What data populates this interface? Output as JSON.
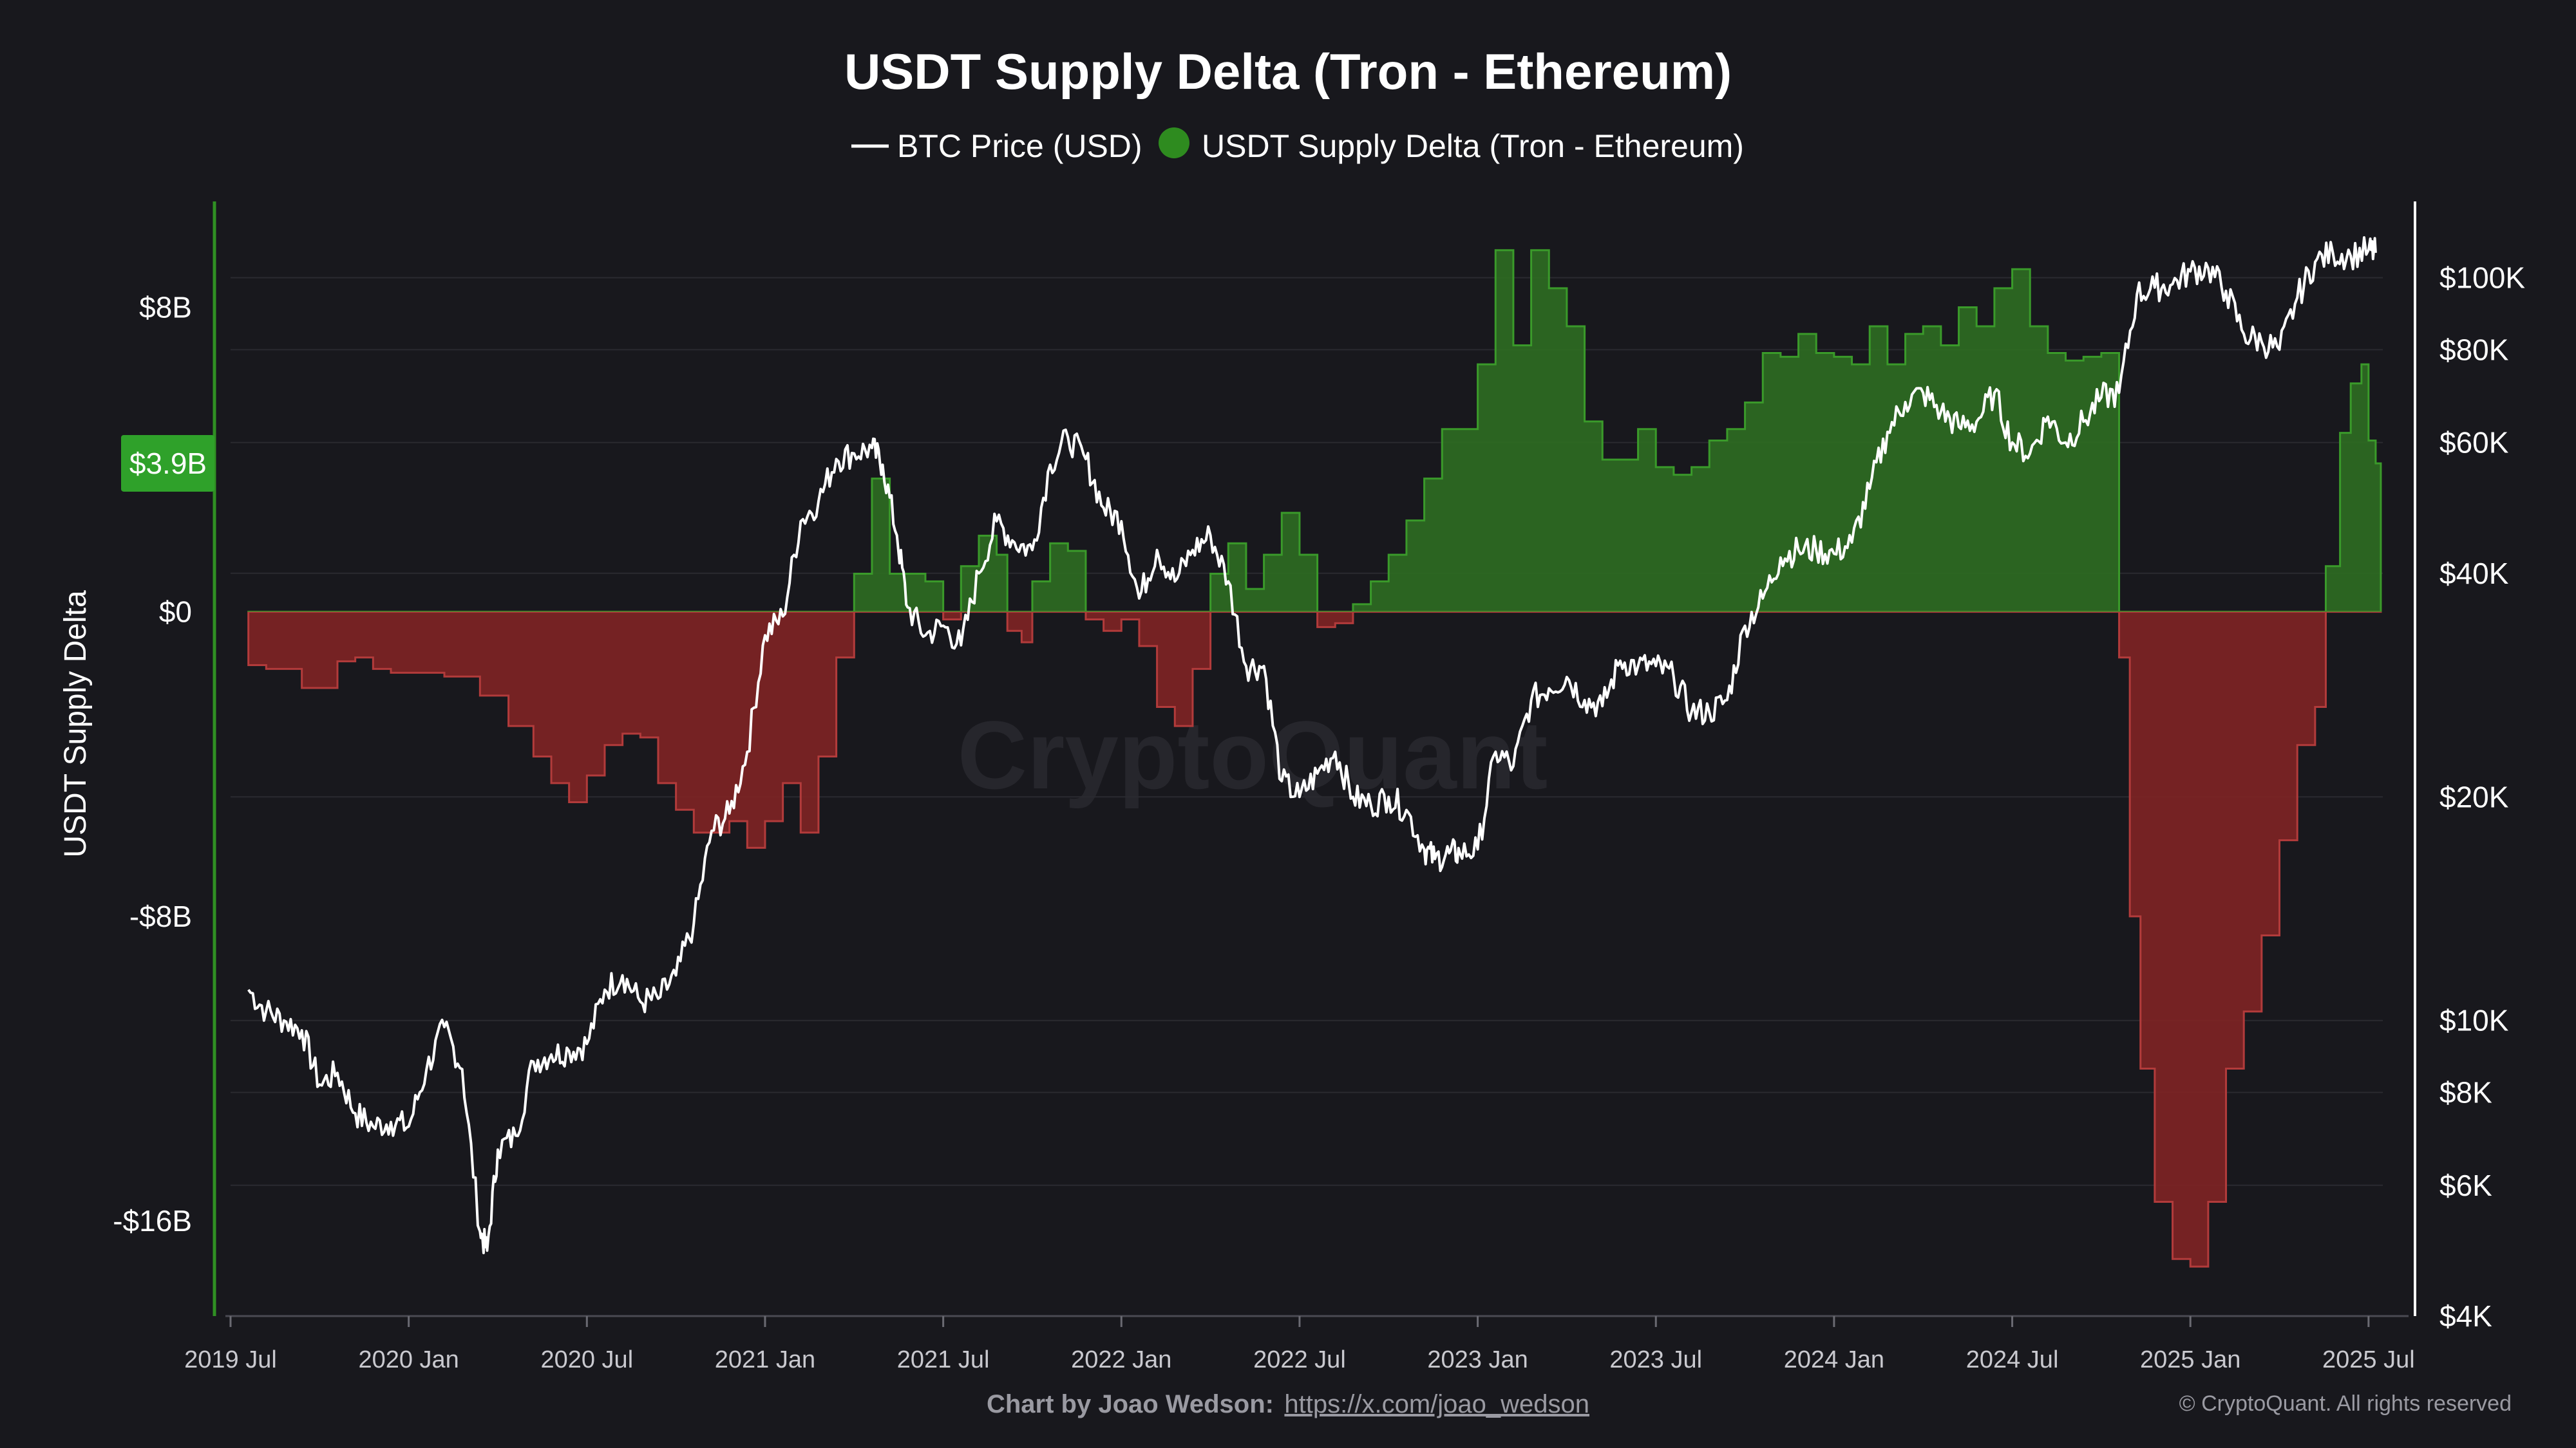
{
  "chart_data": {
    "type": "area",
    "title": "USDT Supply Delta (Tron - Ethereum)",
    "legend": [
      {
        "name": "BTC Price (USD)",
        "color": "#ffffff",
        "marker": "line"
      },
      {
        "name": "USDT Supply Delta (Tron - Ethereum)",
        "color": "#2e8b1f",
        "marker": "dot"
      }
    ],
    "legend_position": "top-center",
    "ylabel_left": "USDT Supply Delta",
    "left_ticks": [
      {
        "v": 8,
        "label": "$8B"
      },
      {
        "v": 0,
        "label": "$0"
      },
      {
        "v": -8,
        "label": "-$8B"
      },
      {
        "v": -16,
        "label": "-$16B"
      }
    ],
    "left_range": [
      -18.5,
      11
    ],
    "current_value": {
      "v": 3.9,
      "label": "$3.9B"
    },
    "right_ticks": [
      {
        "v": 100000,
        "label": "$100K"
      },
      {
        "v": 80000,
        "label": "$80K"
      },
      {
        "v": 60000,
        "label": "$60K"
      },
      {
        "v": 40000,
        "label": "$40K"
      },
      {
        "v": 20000,
        "label": "$20K"
      },
      {
        "v": 10000,
        "label": "$10K"
      },
      {
        "v": 8000,
        "label": "$8K"
      },
      {
        "v": 6000,
        "label": "$6K"
      },
      {
        "v": 4000,
        "label": "$4K"
      }
    ],
    "right_scale": "log",
    "right_range": [
      4000,
      130000
    ],
    "x_ticks": [
      {
        "t": 2019.5,
        "label": "2019 Jul"
      },
      {
        "t": 2020.0,
        "label": "2020 Jan"
      },
      {
        "t": 2020.5,
        "label": "2020 Jul"
      },
      {
        "t": 2021.0,
        "label": "2021 Jan"
      },
      {
        "t": 2021.5,
        "label": "2021 Jul"
      },
      {
        "t": 2022.0,
        "label": "2022 Jan"
      },
      {
        "t": 2022.5,
        "label": "2022 Jul"
      },
      {
        "t": 2023.0,
        "label": "2023 Jan"
      },
      {
        "t": 2023.5,
        "label": "2023 Jul"
      },
      {
        "t": 2024.0,
        "label": "2024 Jan"
      },
      {
        "t": 2024.5,
        "label": "2024 Jul"
      },
      {
        "t": 2025.0,
        "label": "2025 Jan"
      },
      {
        "t": 2025.5,
        "label": "2025 Jul"
      }
    ],
    "x_range": [
      2019.5,
      2025.54
    ],
    "supply_delta_billion": {
      "t": [
        2019.55,
        2019.6,
        2019.7,
        2019.8,
        2019.85,
        2019.9,
        2019.95,
        2020.0,
        2020.1,
        2020.2,
        2020.28,
        2020.35,
        2020.4,
        2020.45,
        2020.5,
        2020.55,
        2020.6,
        2020.65,
        2020.7,
        2020.75,
        2020.8,
        2020.9,
        2020.95,
        2021.0,
        2021.05,
        2021.1,
        2021.15,
        2021.2,
        2021.25,
        2021.3,
        2021.35,
        2021.4,
        2021.45,
        2021.5,
        2021.55,
        2021.6,
        2021.65,
        2021.68,
        2021.72,
        2021.75,
        2021.8,
        2021.85,
        2021.9,
        2021.95,
        2022.0,
        2022.05,
        2022.1,
        2022.15,
        2022.2,
        2022.25,
        2022.3,
        2022.35,
        2022.4,
        2022.45,
        2022.5,
        2022.55,
        2022.6,
        2022.65,
        2022.7,
        2022.75,
        2022.8,
        2022.85,
        2022.9,
        2022.95,
        2023.0,
        2023.05,
        2023.1,
        2023.15,
        2023.2,
        2023.25,
        2023.3,
        2023.35,
        2023.4,
        2023.45,
        2023.5,
        2023.55,
        2023.6,
        2023.65,
        2023.7,
        2023.75,
        2023.8,
        2023.85,
        2023.9,
        2023.95,
        2024.0,
        2024.05,
        2024.1,
        2024.15,
        2024.2,
        2024.25,
        2024.3,
        2024.35,
        2024.4,
        2024.45,
        2024.5,
        2024.55,
        2024.6,
        2024.65,
        2024.7,
        2024.75,
        2024.8,
        2024.83,
        2024.86,
        2024.9,
        2024.95,
        2025.0,
        2025.05,
        2025.1,
        2025.15,
        2025.2,
        2025.25,
        2025.3,
        2025.35,
        2025.38,
        2025.42,
        2025.45,
        2025.48,
        2025.5,
        2025.52
      ],
      "v": [
        -1.4,
        -1.5,
        -2.0,
        -1.3,
        -1.2,
        -1.5,
        -1.6,
        -1.6,
        -1.7,
        -2.2,
        -3.0,
        -3.8,
        -4.5,
        -5.0,
        -4.3,
        -3.5,
        -3.2,
        -3.3,
        -4.5,
        -5.2,
        -5.8,
        -5.5,
        -6.2,
        -5.5,
        -4.5,
        -5.8,
        -3.8,
        -1.2,
        1.0,
        3.5,
        1.0,
        1.0,
        0.8,
        -0.2,
        1.2,
        2.0,
        1.5,
        -0.5,
        -0.8,
        0.8,
        1.8,
        1.6,
        -0.2,
        -0.5,
        -0.2,
        -0.9,
        -2.5,
        -3.0,
        -1.5,
        1.0,
        1.8,
        0.6,
        1.5,
        2.6,
        1.5,
        -0.4,
        -0.3,
        0.2,
        0.8,
        1.5,
        2.4,
        3.5,
        4.8,
        4.8,
        6.5,
        9.5,
        7.0,
        9.5,
        8.5,
        7.5,
        5.0,
        4.0,
        4.0,
        4.8,
        3.8,
        3.6,
        3.8,
        4.5,
        4.8,
        5.5,
        6.8,
        6.7,
        7.3,
        6.8,
        6.7,
        6.5,
        7.5,
        6.5,
        7.3,
        7.5,
        7.0,
        8.0,
        7.5,
        8.5,
        9.0,
        7.5,
        6.8,
        6.6,
        6.7,
        6.8,
        -1.2,
        -8.0,
        -12.0,
        -15.5,
        -17.0,
        -17.2,
        -15.5,
        -12.0,
        -10.5,
        -8.5,
        -6.0,
        -3.5,
        -2.5,
        1.2,
        4.7,
        6.0,
        6.5,
        4.5,
        3.9
      ]
    },
    "btc_price_usd": {
      "t": [
        2019.55,
        2019.6,
        2019.65,
        2019.7,
        2019.75,
        2019.8,
        2019.85,
        2019.9,
        2019.95,
        2020.0,
        2020.05,
        2020.1,
        2020.15,
        2020.2,
        2020.22,
        2020.25,
        2020.3,
        2020.35,
        2020.4,
        2020.45,
        2020.5,
        2020.55,
        2020.6,
        2020.65,
        2020.7,
        2020.75,
        2020.8,
        2020.85,
        2020.9,
        2020.95,
        2021.0,
        2021.05,
        2021.1,
        2021.15,
        2021.2,
        2021.25,
        2021.3,
        2021.33,
        2021.37,
        2021.4,
        2021.45,
        2021.5,
        2021.55,
        2021.6,
        2021.65,
        2021.7,
        2021.75,
        2021.8,
        2021.85,
        2021.9,
        2021.95,
        2022.0,
        2022.05,
        2022.1,
        2022.15,
        2022.2,
        2022.25,
        2022.3,
        2022.35,
        2022.4,
        2022.45,
        2022.5,
        2022.55,
        2022.6,
        2022.65,
        2022.7,
        2022.75,
        2022.8,
        2022.85,
        2022.88,
        2022.92,
        2022.95,
        2023.0,
        2023.05,
        2023.1,
        2023.15,
        2023.2,
        2023.25,
        2023.3,
        2023.35,
        2023.4,
        2023.45,
        2023.5,
        2023.55,
        2023.6,
        2023.65,
        2023.7,
        2023.75,
        2023.8,
        2023.85,
        2023.9,
        2023.95,
        2024.0,
        2024.05,
        2024.1,
        2024.15,
        2024.2,
        2024.25,
        2024.3,
        2024.35,
        2024.4,
        2024.45,
        2024.5,
        2024.55,
        2024.6,
        2024.65,
        2024.7,
        2024.75,
        2024.8,
        2024.85,
        2024.9,
        2024.95,
        2025.0,
        2025.05,
        2025.1,
        2025.15,
        2025.2,
        2025.25,
        2025.3,
        2025.35,
        2025.4,
        2025.45,
        2025.5,
        2025.52
      ],
      "v": [
        11000,
        10300,
        10000,
        9700,
        8200,
        8500,
        7500,
        7200,
        7300,
        7200,
        8600,
        9800,
        8600,
        5200,
        4900,
        6700,
        7000,
        8800,
        9000,
        9100,
        9300,
        11000,
        11500,
        10600,
        10700,
        11500,
        13500,
        18000,
        19000,
        23000,
        33000,
        35000,
        47000,
        50000,
        57000,
        58000,
        59000,
        56000,
        45000,
        36000,
        33000,
        34000,
        32000,
        40000,
        47000,
        44000,
        43000,
        56000,
        61000,
        57000,
        49000,
        47000,
        37000,
        43000,
        39000,
        43000,
        45000,
        39000,
        30000,
        30000,
        21000,
        20000,
        21500,
        23000,
        20000,
        19500,
        20000,
        19200,
        17000,
        16500,
        16800,
        16800,
        17000,
        23000,
        22000,
        27000,
        28000,
        29000,
        27000,
        26500,
        30500,
        30000,
        30000,
        29000,
        26000,
        26000,
        27000,
        34000,
        37000,
        42000,
        43000,
        43000,
        42500,
        44000,
        52000,
        62000,
        68000,
        70000,
        66000,
        63000,
        64000,
        70000,
        60000,
        58000,
        65000,
        60000,
        64000,
        69000,
        70000,
        95000,
        97000,
        98000,
        102000,
        103000,
        96000,
        84000,
        82000,
        80000,
        94000,
        105000,
        108000,
        107000,
        109000,
        108000
      ]
    }
  },
  "footer": {
    "credit_prefix": "Chart by Joao Wedson:",
    "credit_link": "https://x.com/joao_wedson",
    "copyright": "© CryptoQuant. All rights reserved"
  },
  "watermark": "CryptoQuant",
  "colors": {
    "background": "#18181d",
    "positive_fill": "#2e6b22",
    "positive_line": "#3a9a2a",
    "negative_fill": "#7e2424",
    "negative_line": "#b23b3b",
    "price_line": "#ffffff",
    "grid": "#2a2a30",
    "left_axis": "#2f8f23",
    "badge": "#2fa12a"
  }
}
